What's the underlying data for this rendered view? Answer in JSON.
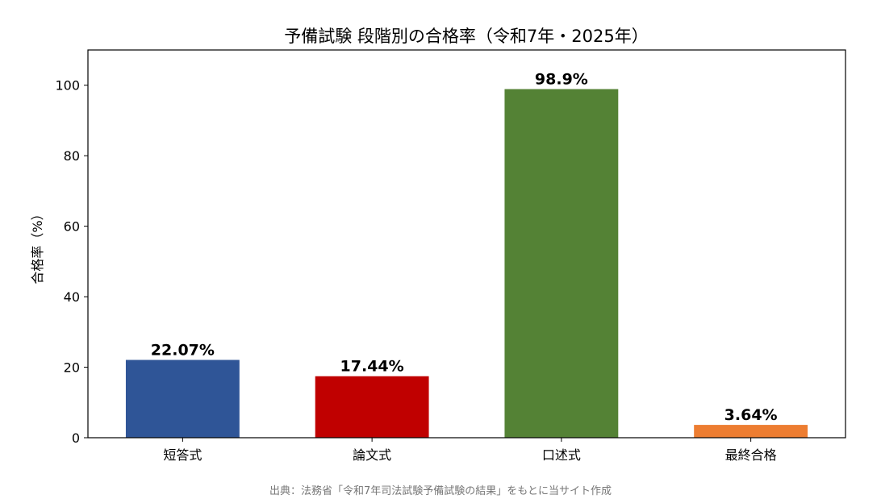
{
  "chart_data": {
    "type": "bar",
    "title": "予備試験 段階別の合格率（令和7年・2025年）",
    "ylabel": "合格率（%）",
    "xlabel": "",
    "categories": [
      "短答式",
      "論文式",
      "口述式",
      "最終合格"
    ],
    "values": [
      22.07,
      17.44,
      98.9,
      3.64
    ],
    "value_labels": [
      "22.07%",
      "17.44%",
      "98.9%",
      "3.64%"
    ],
    "colors": [
      "#2f5597",
      "#c00000",
      "#548235",
      "#ed7d31"
    ],
    "ylim": [
      0,
      110
    ],
    "yticks": [
      0,
      20,
      40,
      60,
      80,
      100
    ],
    "grid": false,
    "legend": "none"
  },
  "source": "出典：法務省「令和7年司法試験予備試験の結果」をもとに当サイト作成"
}
